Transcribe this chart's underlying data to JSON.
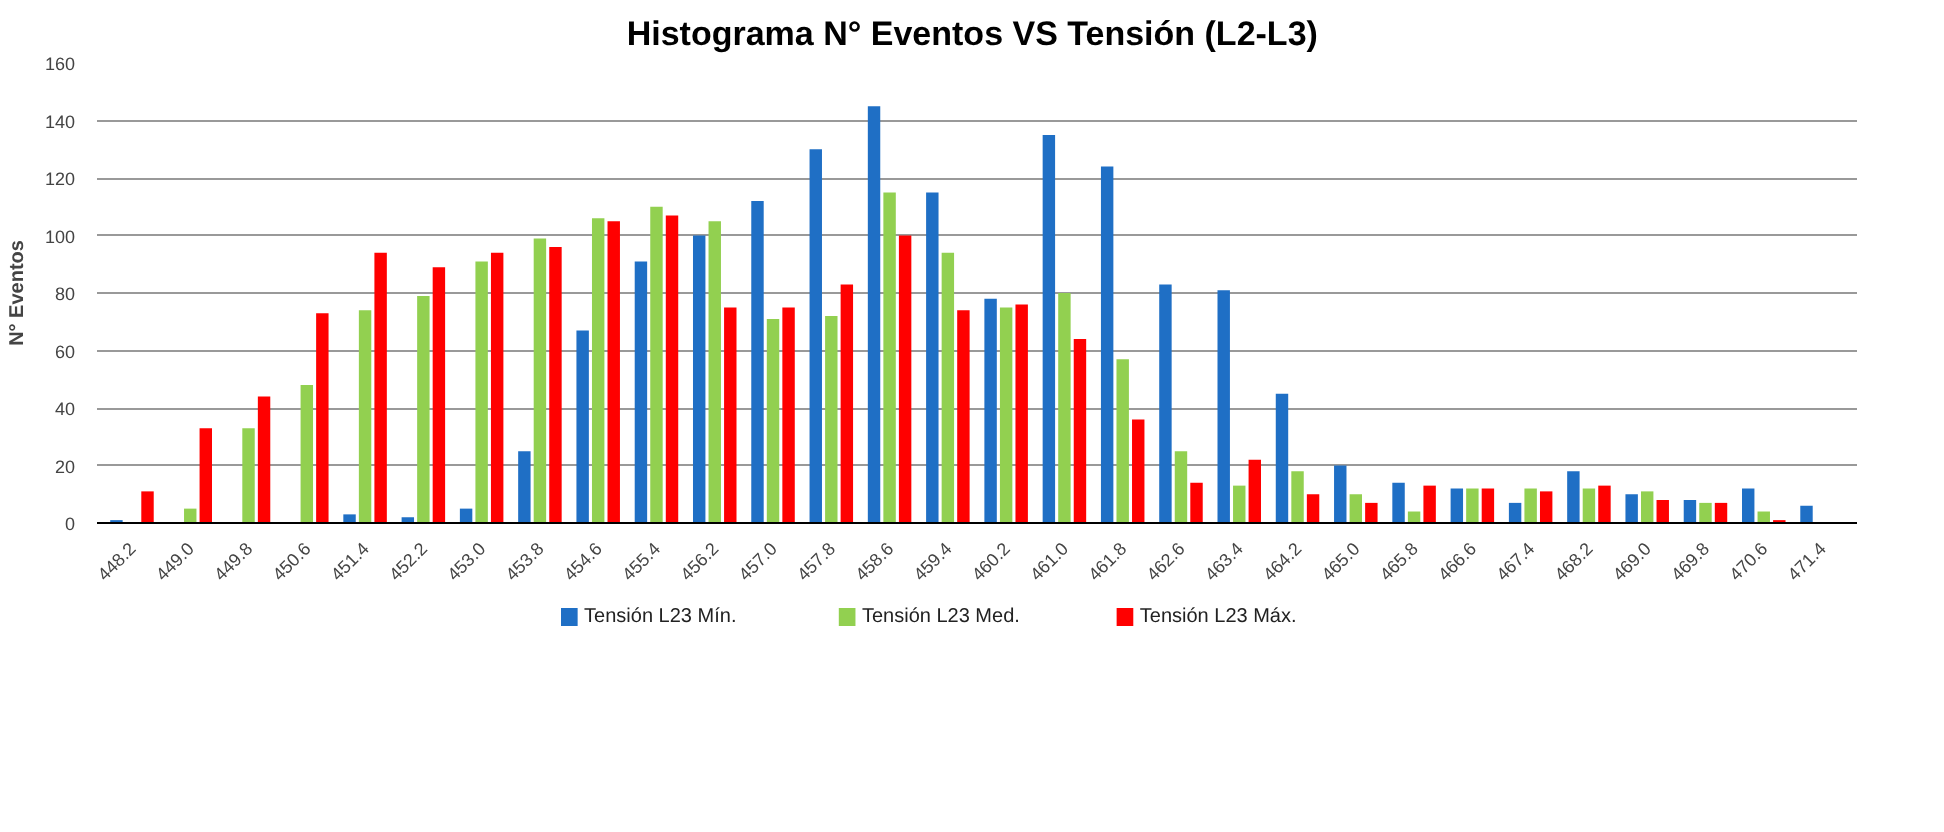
{
  "chart_data": {
    "type": "bar",
    "title": "Histograma N° Eventos  VS Tensión (L2-L3)",
    "ylabel": "N° Eventos",
    "categories": [
      "448.2",
      "449.0",
      "449.8",
      "450.6",
      "451.4",
      "452.2",
      "453.0",
      "453.8",
      "454.6",
      "455.4",
      "456.2",
      "457.0",
      "457.8",
      "458.6",
      "459.4",
      "460.2",
      "461.0",
      "461.8",
      "462.6",
      "463.4",
      "464.2",
      "465.0",
      "465.8",
      "466.6",
      "467.4",
      "468.2",
      "469.0",
      "469.8",
      "470.6",
      "471.4"
    ],
    "series": [
      {
        "name": "Tensión L23 Mín.",
        "color": "#1f6fc5",
        "values": [
          1,
          0,
          0,
          0,
          3,
          2,
          5,
          25,
          67,
          91,
          100,
          112,
          130,
          145,
          115,
          78,
          135,
          124,
          83,
          81,
          45,
          20,
          14,
          12,
          7,
          18,
          10,
          8,
          12,
          6
        ]
      },
      {
        "name": "Tensión L23 Med.",
        "color": "#92d050",
        "values": [
          0,
          5,
          33,
          48,
          74,
          79,
          91,
          99,
          106,
          110,
          105,
          71,
          72,
          115,
          94,
          75,
          80,
          57,
          25,
          13,
          18,
          10,
          4,
          12,
          12,
          12,
          11,
          7,
          4,
          0
        ]
      },
      {
        "name": "Tensión L23 Máx.",
        "color": "#ff0000",
        "values": [
          11,
          33,
          44,
          73,
          94,
          89,
          94,
          96,
          105,
          107,
          75,
          75,
          83,
          100,
          74,
          76,
          64,
          36,
          14,
          22,
          10,
          7,
          13,
          12,
          11,
          13,
          8,
          7,
          1,
          0
        ]
      }
    ],
    "ylim": [
      0,
      160
    ],
    "yticks": [
      0,
      20,
      40,
      60,
      80,
      100,
      120,
      140,
      160
    ],
    "grid": "y",
    "legend": "bottom"
  }
}
